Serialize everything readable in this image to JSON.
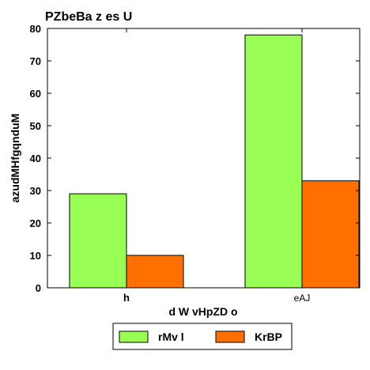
{
  "chart_data": {
    "type": "bar",
    "title": "PZbeBa z es U",
    "xlabel": "d W vHpZD  o",
    "ylabel": "azudMHfgqnduM",
    "categories": [
      "h",
      "eAJ"
    ],
    "series": [
      {
        "name": "rMv l",
        "values": [
          29,
          78
        ],
        "color": "#99ff55"
      },
      {
        "name": "KrBP",
        "values": [
          10,
          33
        ],
        "color": "#ff7000"
      }
    ],
    "ylim": [
      0,
      80
    ],
    "yticks": [
      0,
      10,
      20,
      30,
      40,
      50,
      60,
      70,
      80
    ],
    "grid": false,
    "legend_position": "bottom-center"
  }
}
